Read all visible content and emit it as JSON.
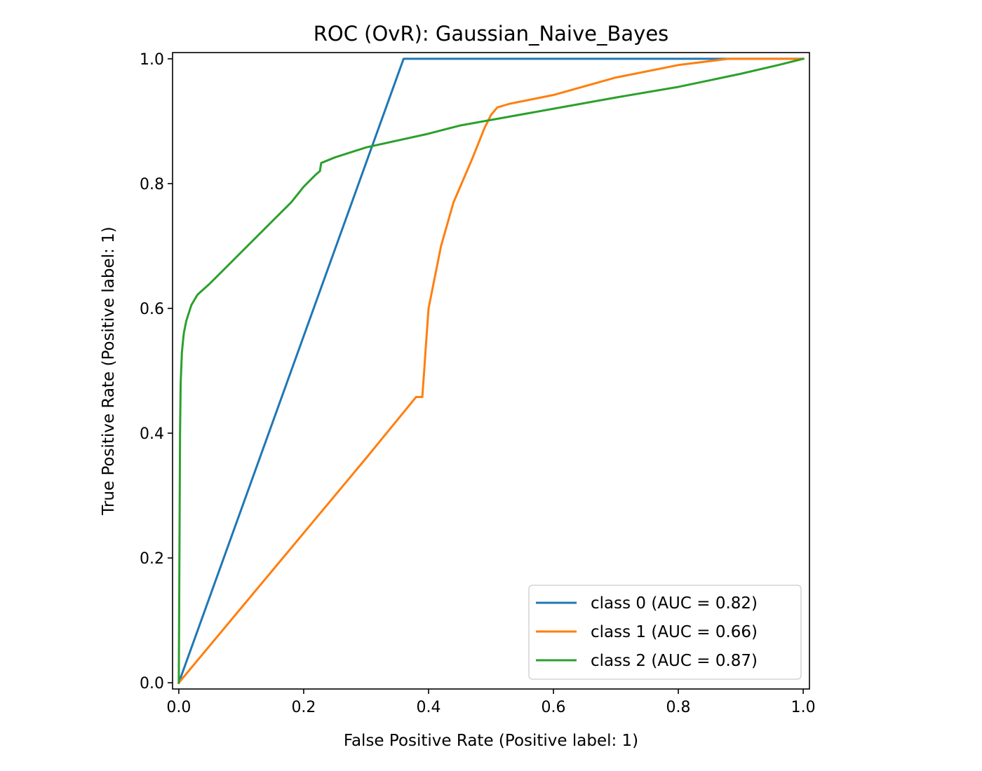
{
  "chart_data": {
    "type": "line",
    "title": "ROC (OvR): Gaussian_Naive_Bayes",
    "xlabel": "False Positive Rate (Positive label: 1)",
    "ylabel": "True Positive Rate (Positive label: 1)",
    "xlim": [
      -0.01,
      1.01
    ],
    "ylim": [
      -0.01,
      1.01
    ],
    "xticks": [
      0.0,
      0.2,
      0.4,
      0.6,
      0.8,
      1.0
    ],
    "yticks": [
      0.0,
      0.2,
      0.4,
      0.6,
      0.8,
      1.0
    ],
    "xtick_labels": [
      "0.0",
      "0.2",
      "0.4",
      "0.6",
      "0.8",
      "1.0"
    ],
    "ytick_labels": [
      "0.0",
      "0.2",
      "0.4",
      "0.6",
      "0.8",
      "1.0"
    ],
    "grid": false,
    "legend_position": "lower-right",
    "series": [
      {
        "name": "class 0 (AUC = 0.82)",
        "color": "#1f77b4",
        "points": [
          [
            0.0,
            0.0
          ],
          [
            0.36,
            1.0
          ],
          [
            1.0,
            1.0
          ]
        ]
      },
      {
        "name": "class 1 (AUC = 0.66)",
        "color": "#ff7f0e",
        "points": [
          [
            0.0,
            0.0
          ],
          [
            0.1,
            0.12
          ],
          [
            0.2,
            0.24
          ],
          [
            0.3,
            0.36
          ],
          [
            0.38,
            0.458
          ],
          [
            0.39,
            0.458
          ],
          [
            0.393,
            0.5
          ],
          [
            0.395,
            0.53
          ],
          [
            0.4,
            0.6
          ],
          [
            0.41,
            0.65
          ],
          [
            0.42,
            0.7
          ],
          [
            0.44,
            0.77
          ],
          [
            0.47,
            0.84
          ],
          [
            0.49,
            0.89
          ],
          [
            0.5,
            0.91
          ],
          [
            0.51,
            0.922
          ],
          [
            0.53,
            0.928
          ],
          [
            0.6,
            0.942
          ],
          [
            0.7,
            0.97
          ],
          [
            0.8,
            0.99
          ],
          [
            0.88,
            1.0
          ],
          [
            1.0,
            1.0
          ]
        ]
      },
      {
        "name": "class 2 (AUC = 0.87)",
        "color": "#2ca02c",
        "points": [
          [
            0.0,
            0.0
          ],
          [
            0.001,
            0.2
          ],
          [
            0.002,
            0.4
          ],
          [
            0.003,
            0.48
          ],
          [
            0.005,
            0.53
          ],
          [
            0.008,
            0.56
          ],
          [
            0.012,
            0.58
          ],
          [
            0.02,
            0.605
          ],
          [
            0.03,
            0.622
          ],
          [
            0.05,
            0.64
          ],
          [
            0.1,
            0.69
          ],
          [
            0.15,
            0.74
          ],
          [
            0.18,
            0.77
          ],
          [
            0.2,
            0.795
          ],
          [
            0.22,
            0.815
          ],
          [
            0.226,
            0.82
          ],
          [
            0.228,
            0.833
          ],
          [
            0.25,
            0.842
          ],
          [
            0.3,
            0.858
          ],
          [
            0.4,
            0.88
          ],
          [
            0.45,
            0.893
          ],
          [
            0.5,
            0.902
          ],
          [
            0.6,
            0.92
          ],
          [
            0.7,
            0.938
          ],
          [
            0.8,
            0.955
          ],
          [
            0.9,
            0.976
          ],
          [
            0.96,
            0.99
          ],
          [
            1.0,
            1.0
          ]
        ]
      }
    ]
  }
}
